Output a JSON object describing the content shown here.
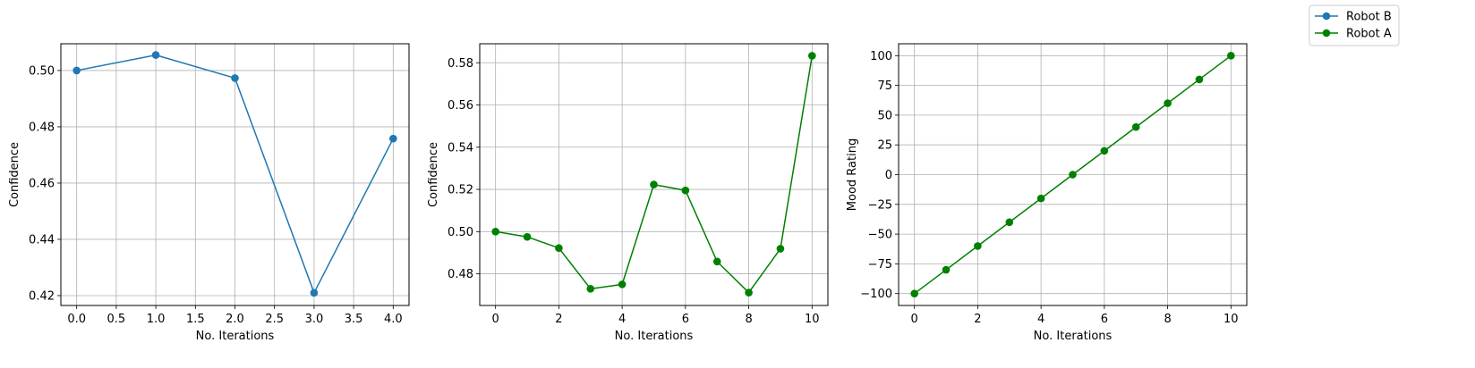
{
  "legend": {
    "placement": "top-right",
    "entries": [
      {
        "label": "Robot B",
        "color": "#1f77b4"
      },
      {
        "label": "Robot A",
        "color": "#008000"
      }
    ]
  },
  "chart_data": [
    {
      "type": "line",
      "xlabel": "No. Iterations",
      "ylabel": "Confidence",
      "xlim": [
        -0.2,
        4.2
      ],
      "ylim": [
        0.4165,
        0.5095
      ],
      "xticks": [
        0.0,
        0.5,
        1.0,
        1.5,
        2.0,
        2.5,
        3.0,
        3.5,
        4.0
      ],
      "xtick_labels": [
        "0.0",
        "0.5",
        "1.0",
        "1.5",
        "2.0",
        "2.5",
        "3.0",
        "3.5",
        "4.0"
      ],
      "yticks": [
        0.42,
        0.44,
        0.46,
        0.48,
        0.5
      ],
      "ytick_labels": [
        "0.42",
        "0.44",
        "0.46",
        "0.48",
        "0.50"
      ],
      "grid": true,
      "series": [
        {
          "name": "Robot B",
          "color": "#1f77b4",
          "x": [
            0,
            1,
            2,
            3,
            4
          ],
          "y": [
            0.5,
            0.5055,
            0.4973,
            0.421,
            0.4758
          ]
        }
      ]
    },
    {
      "type": "line",
      "xlabel": "No. Iterations",
      "ylabel": "Confidence",
      "xlim": [
        -0.5,
        10.5
      ],
      "ylim": [
        0.465,
        0.589
      ],
      "xticks": [
        0,
        2,
        4,
        6,
        8,
        10
      ],
      "xtick_labels": [
        "0",
        "2",
        "4",
        "6",
        "8",
        "10"
      ],
      "yticks": [
        0.48,
        0.5,
        0.52,
        0.54,
        0.56,
        0.58
      ],
      "ytick_labels": [
        "0.48",
        "0.50",
        "0.52",
        "0.54",
        "0.56",
        "0.58"
      ],
      "grid": true,
      "series": [
        {
          "name": "Robot A",
          "color": "#008000",
          "x": [
            0,
            1,
            2,
            3,
            4,
            5,
            6,
            7,
            8,
            9,
            10
          ],
          "y": [
            0.5,
            0.4975,
            0.4922,
            0.4729,
            0.475,
            0.5223,
            0.5195,
            0.4858,
            0.4711,
            0.4919,
            0.5833
          ]
        }
      ]
    },
    {
      "type": "line",
      "xlabel": "No. Iterations",
      "ylabel": "Mood Rating",
      "xlim": [
        -0.5,
        10.5
      ],
      "ylim": [
        -110,
        110
      ],
      "xticks": [
        0,
        2,
        4,
        6,
        8,
        10
      ],
      "xtick_labels": [
        "0",
        "2",
        "4",
        "6",
        "8",
        "10"
      ],
      "yticks": [
        -100,
        -75,
        -50,
        -25,
        0,
        25,
        50,
        75,
        100
      ],
      "ytick_labels": [
        "−100",
        "−75",
        "−50",
        "−25",
        "0",
        "25",
        "50",
        "75",
        "100"
      ],
      "grid": true,
      "series": [
        {
          "name": "Robot A",
          "color": "#008000",
          "x": [
            0,
            1,
            2,
            3,
            4,
            5,
            6,
            7,
            8,
            9,
            10
          ],
          "y": [
            -100,
            -80,
            -60,
            -40,
            -20,
            0,
            20,
            40,
            60,
            80,
            100
          ]
        }
      ]
    }
  ]
}
